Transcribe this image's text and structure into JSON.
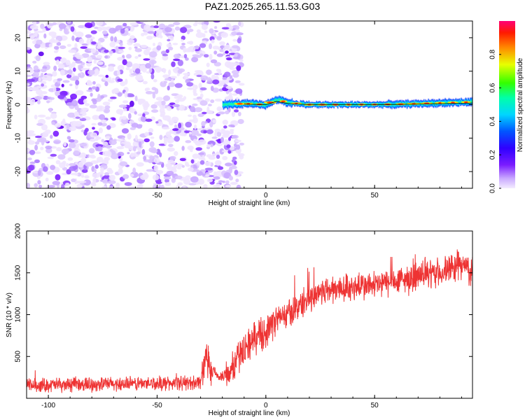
{
  "title": "PAZ1.2025.265.11.53.G03",
  "chart_data": [
    {
      "type": "heatmap",
      "xlabel": "Height of straight line (km)",
      "ylabel": "Frequency (Hz)",
      "xlim": [
        -110,
        95
      ],
      "ylim": [
        -25,
        25
      ],
      "xticks": [
        -100,
        -50,
        0,
        50
      ],
      "xtick_labels": [
        "-100",
        "-50",
        "0",
        "50"
      ],
      "yticks": [
        -20,
        -10,
        0,
        10,
        20
      ],
      "ytick_labels": [
        "-20",
        "-10",
        "0",
        "10",
        "20"
      ],
      "colorbar": {
        "label": "Normalized spectral amplitude",
        "range": [
          0.0,
          1.0
        ],
        "ticks": [
          0.0,
          0.2,
          0.4,
          0.6,
          0.8
        ],
        "tick_labels": [
          "0.0",
          "0.2",
          "0.4",
          "0.6",
          "0.8"
        ]
      },
      "description_values": {
        "noise_region_x": [
          -110,
          -15
        ],
        "signal_line_frequency_hz": [
          [
            -20,
            0.0
          ],
          [
            -10,
            0.3
          ],
          [
            0,
            0.0
          ],
          [
            5,
            1.6
          ],
          [
            10,
            0.6
          ],
          [
            20,
            0.0
          ],
          [
            40,
            0.0
          ],
          [
            60,
            0.1
          ],
          [
            80,
            0.5
          ],
          [
            95,
            0.8
          ]
        ]
      }
    },
    {
      "type": "line",
      "xlabel": "Height of straight line (km)",
      "ylabel": "SNR (10 * v/v)",
      "xlim": [
        -110,
        95
      ],
      "ylim": [
        0,
        2000
      ],
      "xticks": [
        -100,
        -50,
        0,
        50
      ],
      "xtick_labels": [
        "-100",
        "-50",
        "0",
        "50"
      ],
      "yticks": [
        500,
        1000,
        1500,
        2000
      ],
      "ytick_labels": [
        "500",
        "1000",
        "1500",
        "2000"
      ],
      "series": [
        {
          "name": "SNR",
          "color": "#ee3333",
          "x": [
            -110,
            -100,
            -90,
            -80,
            -70,
            -60,
            -50,
            -40,
            -35,
            -30,
            -28,
            -25,
            -20,
            -15,
            -10,
            -5,
            0,
            5,
            10,
            15,
            20,
            25,
            30,
            40,
            50,
            60,
            70,
            80,
            85,
            90,
            95
          ],
          "y": [
            150,
            160,
            160,
            170,
            170,
            175,
            180,
            180,
            185,
            200,
            480,
            300,
            250,
            380,
            600,
            720,
            800,
            950,
            1000,
            1100,
            1200,
            1280,
            1300,
            1330,
            1350,
            1400,
            1450,
            1500,
            1550,
            1600,
            1500
          ]
        }
      ]
    }
  ]
}
